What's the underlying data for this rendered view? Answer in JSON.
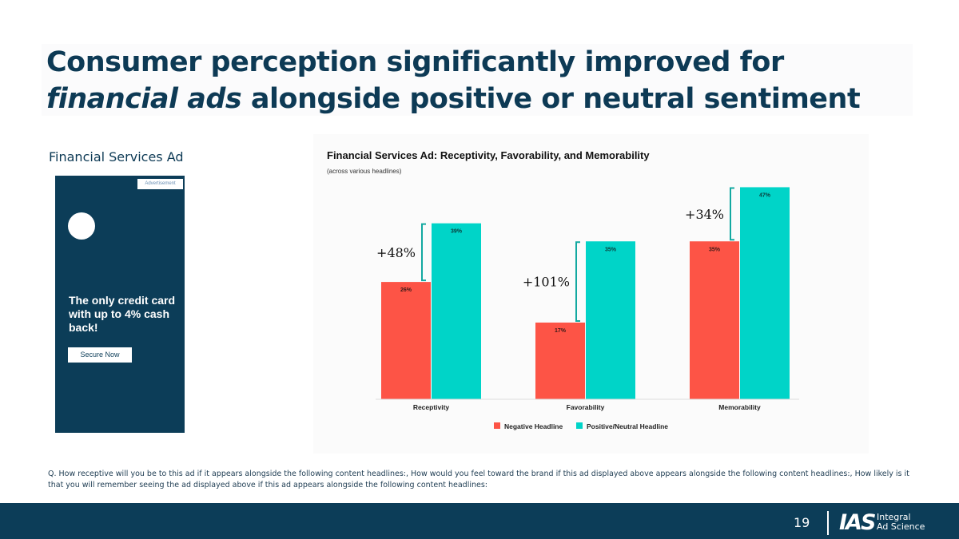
{
  "slide": {
    "title_line1": "Consumer perception significantly improved for",
    "title_italic": "financial ads",
    "title_line2_rest": " alongside positive or neutral sentiment",
    "ad_label": "Financial Services Ad",
    "ad": {
      "tag": "Advertisement",
      "copy": "The only credit card with up to 4% cash back!",
      "button": "Secure Now"
    },
    "note": "Q. How receptive will you be to this ad if it appears alongside the following content headlines:, How would you feel toward the brand if this ad displayed above appears alongside the following content headlines:, How likely is it that you will remember seeing the ad displayed above if this ad appears alongside the following content headlines:",
    "page_number": "19",
    "logo_mark": "IAS",
    "logo_line1": "Integral",
    "logo_line2": "Ad Science"
  },
  "chart_data": {
    "type": "bar",
    "title": "Financial Services Ad: Receptivity, Favorability, and Memorability",
    "subtitle": "(across various headlines)",
    "categories": [
      "Receptivity",
      "Favorability",
      "Memorability"
    ],
    "series": [
      {
        "name": "Negative Headline",
        "color": "#fd5446",
        "values": [
          26,
          17,
          35
        ]
      },
      {
        "name": "Positive/Neutral Headline",
        "color": "#00d4c8",
        "values": [
          39,
          35,
          47
        ]
      }
    ],
    "value_labels": [
      [
        "26%",
        "17%",
        "35%"
      ],
      [
        "39%",
        "35%",
        "47%"
      ]
    ],
    "annotations": [
      "+48%",
      "+101%",
      "+34%"
    ],
    "ylim": [
      0,
      50
    ],
    "grid": false,
    "legend": "bottom-center"
  }
}
